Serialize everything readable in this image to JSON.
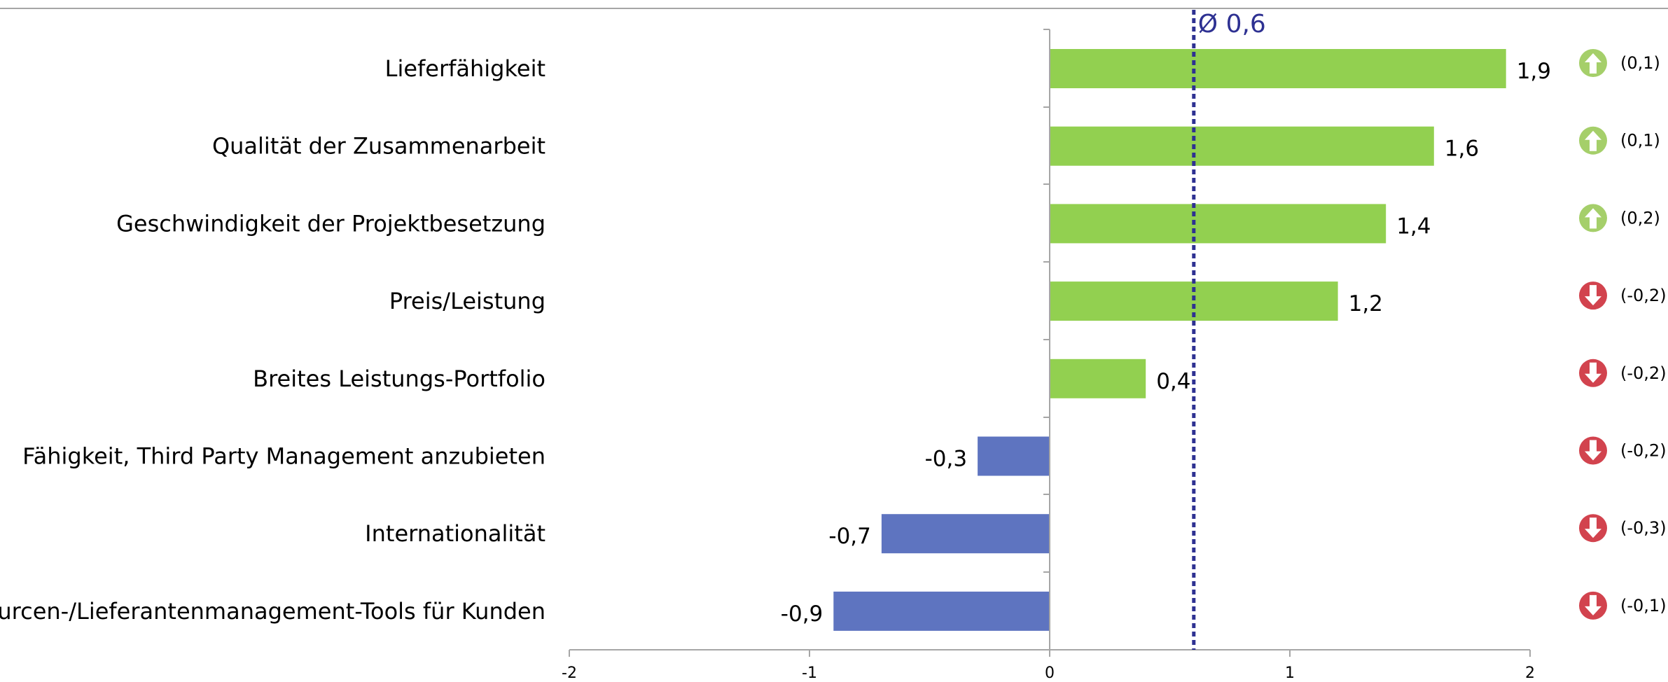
{
  "chart_data": {
    "type": "bar",
    "orientation": "horizontal",
    "title": "",
    "xlabel": "",
    "ylabel": "",
    "xlim": [
      -2,
      2
    ],
    "x_ticks": [
      "-2",
      "-1",
      "0",
      "1",
      "2"
    ],
    "grid": false,
    "legend": "none",
    "categories": [
      "Lieferfähigkeit",
      "Qualität der Zusammenarbeit",
      "Geschwindigkeit der Projektbesetzung",
      "Preis/Leistung",
      "Breites Leistungs-Portfolio",
      "Fähigkeit, Third Party Management anzubieten",
      "Internationalität",
      "Ressourcen-/Lieferantenmanagement-Tools für Kunden"
    ],
    "values": [
      1.9,
      1.6,
      1.4,
      1.2,
      0.4,
      -0.3,
      -0.7,
      -0.9
    ],
    "value_labels": [
      "1,9",
      "1,6",
      "1,4",
      "1,2",
      "0,4",
      "-0,3",
      "-0,7",
      "-0,9"
    ],
    "changes": [
      "(0,1)",
      "(0,1)",
      "(0,2)",
      "(-0,2)",
      "(-0,2)",
      "(-0,2)",
      "(-0,3)",
      "(-0,1)"
    ],
    "change_directions": [
      "up",
      "up",
      "up",
      "down",
      "down",
      "down",
      "down",
      "down"
    ],
    "average": {
      "value": 0.6,
      "label": "Ø 0,6"
    },
    "colors": {
      "positive_bar": "#92D050",
      "negative_bar": "#5E74C0",
      "average_line": "#2E3192",
      "up_icon": "#A5CF6A",
      "down_icon": "#D2434E",
      "axis": "#A6A6A6"
    }
  }
}
